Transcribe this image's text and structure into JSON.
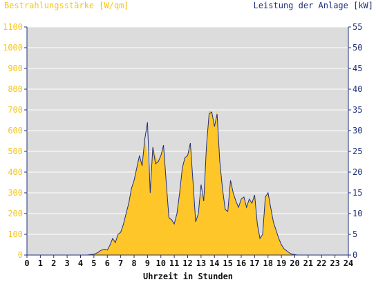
{
  "chart_data": {
    "type": "area",
    "ylabel_left": "Bestrahlungsstärke [W/qm]",
    "ylabel_right": "Leistung der Anlage [kW]",
    "xlabel": "Uhrzeit in Stunden",
    "xlim": [
      0,
      24
    ],
    "ylim_left": [
      0,
      1100
    ],
    "ylim_right": [
      0,
      55
    ],
    "x_ticks": [
      "0",
      "1",
      "2",
      "3",
      "4",
      "5",
      "6",
      "7",
      "8",
      "9",
      "10",
      "11",
      "12",
      "13",
      "14",
      "15",
      "16",
      "17",
      "18",
      "19",
      "20",
      "21",
      "22",
      "23",
      "24"
    ],
    "y_ticks_left": [
      "0",
      "100",
      "200",
      "300",
      "400",
      "500",
      "600",
      "700",
      "800",
      "900",
      "1000",
      "1100"
    ],
    "y_ticks_right": [
      "0",
      "5",
      "10",
      "15",
      "20",
      "25",
      "30",
      "35",
      "40",
      "45",
      "50",
      "55"
    ],
    "grid": true,
    "colors": {
      "irradiance": "#ffc629",
      "power": "#1f2f7a",
      "plot_bg": "#dcdcdc"
    },
    "series": [
      {
        "name": "Bestrahlungsstärke [W/qm]",
        "axis": "left",
        "x": [
          0,
          4.5,
          5,
          5.3,
          5.5,
          5.8,
          6,
          6.2,
          6.4,
          6.6,
          6.8,
          7,
          7.2,
          7.4,
          7.6,
          7.8,
          8,
          8.2,
          8.4,
          8.6,
          8.8,
          9,
          9.2,
          9.4,
          9.6,
          9.8,
          10,
          10.2,
          10.4,
          10.6,
          10.8,
          11,
          11.2,
          11.4,
          11.6,
          11.8,
          12,
          12.2,
          12.4,
          12.6,
          12.8,
          13,
          13.2,
          13.4,
          13.6,
          13.8,
          14,
          14.2,
          14.4,
          14.6,
          14.8,
          15,
          15.2,
          15.4,
          15.6,
          15.8,
          16,
          16.2,
          16.4,
          16.6,
          16.8,
          17,
          17.2,
          17.4,
          17.6,
          17.8,
          18,
          18.2,
          18.4,
          18.6,
          18.8,
          19,
          19.2,
          19.4,
          19.6,
          19.8,
          20,
          20.2,
          20.5,
          21,
          24
        ],
        "y": [
          0,
          0,
          5,
          15,
          25,
          30,
          25,
          50,
          80,
          60,
          100,
          110,
          150,
          200,
          250,
          320,
          360,
          420,
          480,
          430,
          560,
          480,
          300,
          520,
          480,
          450,
          480,
          530,
          350,
          180,
          170,
          150,
          200,
          300,
          420,
          470,
          480,
          540,
          350,
          160,
          200,
          300,
          260,
          520,
          700,
          690,
          620,
          700,
          450,
          320,
          220,
          210,
          360,
          300,
          260,
          230,
          270,
          280,
          230,
          270,
          250,
          290,
          150,
          80,
          100,
          280,
          300,
          230,
          160,
          120,
          80,
          50,
          30,
          20,
          10,
          5,
          2,
          0,
          0,
          0,
          0
        ]
      },
      {
        "name": "Leistung der Anlage [kW]",
        "axis": "right",
        "x": [
          0,
          4.5,
          5,
          5.3,
          5.5,
          5.8,
          6,
          6.2,
          6.4,
          6.6,
          6.8,
          7,
          7.2,
          7.4,
          7.6,
          7.8,
          8,
          8.2,
          8.4,
          8.6,
          8.8,
          9,
          9.2,
          9.4,
          9.6,
          9.8,
          10,
          10.2,
          10.4,
          10.6,
          10.8,
          11,
          11.2,
          11.4,
          11.6,
          11.8,
          12,
          12.2,
          12.4,
          12.6,
          12.8,
          13,
          13.2,
          13.4,
          13.6,
          13.8,
          14,
          14.2,
          14.4,
          14.6,
          14.8,
          15,
          15.2,
          15.4,
          15.6,
          15.8,
          16,
          16.2,
          16.4,
          16.6,
          16.8,
          17,
          17.2,
          17.4,
          17.6,
          17.8,
          18,
          18.2,
          18.4,
          18.6,
          18.8,
          19,
          19.2,
          19.4,
          19.6,
          19.8,
          20,
          20.2,
          20.5,
          21,
          24
        ],
        "y": [
          0,
          0,
          0.2,
          0.6,
          1.1,
          1.4,
          1.2,
          2.4,
          4,
          3,
          5,
          5.5,
          7.4,
          10,
          12.5,
          16,
          18,
          21,
          24,
          21.5,
          28,
          32,
          15,
          26,
          22,
          22.5,
          24,
          26.5,
          17.5,
          9,
          8.5,
          7.5,
          10,
          15,
          21,
          23.5,
          24,
          27,
          17.5,
          8,
          10,
          17,
          13,
          26,
          34,
          34.5,
          31,
          34,
          22.5,
          16,
          11,
          10.5,
          18,
          15,
          13,
          11.5,
          13.5,
          14,
          11.5,
          13.5,
          12.5,
          14.5,
          7.5,
          4,
          5,
          14,
          15,
          11.5,
          8,
          6,
          4,
          2.5,
          1.5,
          1,
          0.5,
          0.2,
          0.1,
          0,
          0,
          0,
          0
        ]
      }
    ]
  }
}
